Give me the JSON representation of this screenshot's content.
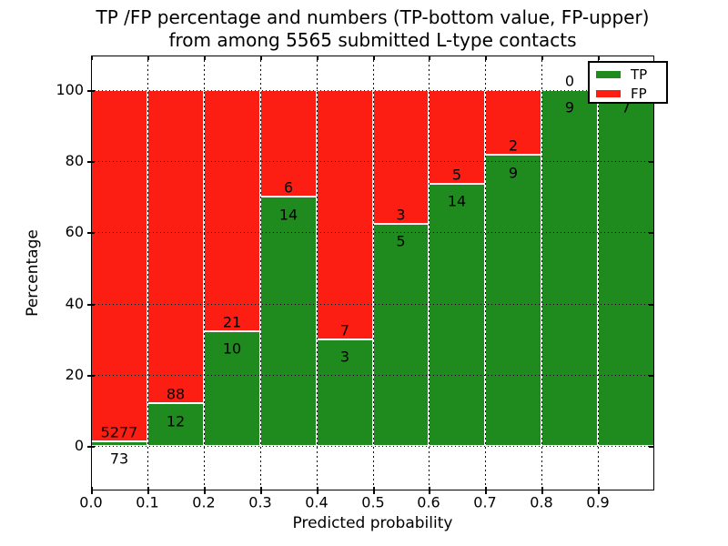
{
  "figure": {
    "title_line1": "TP /FP percentage and numbers (TP-bottom value, FP-upper)",
    "title_line2": "from among 5565 submitted L-type contacts"
  },
  "chart_data": {
    "type": "bar",
    "stacked": true,
    "normalized": "each bar scaled to 100%, split by TP share; counts printed as labels (TP below boundary, FP above)",
    "title": "TP /FP percentage and numbers (TP-bottom value, FP-upper) from among 5565 submitted L-type contacts",
    "xlabel": "Predicted probability",
    "ylabel": "Percentage",
    "total_contacts": 5565,
    "bin_start": [
      0.0,
      0.1,
      0.2,
      0.3,
      0.4,
      0.5,
      0.6,
      0.7,
      0.8,
      0.9
    ],
    "bin_width": 0.1,
    "series": [
      {
        "name": "TP",
        "color": "#1f8b1f",
        "counts": [
          73,
          12,
          10,
          14,
          3,
          5,
          14,
          9,
          9,
          7
        ]
      },
      {
        "name": "FP",
        "color": "#fc1d13",
        "counts": [
          5277,
          88,
          21,
          6,
          7,
          3,
          5,
          2,
          0,
          0
        ]
      }
    ],
    "tp_percent": [
      1.4,
      12.0,
      32.3,
      70.0,
      30.0,
      62.5,
      73.7,
      81.8,
      100.0,
      100.0
    ],
    "xticks": [
      "0.0",
      "0.1",
      "0.2",
      "0.3",
      "0.4",
      "0.5",
      "0.6",
      "0.7",
      "0.8",
      "0.9"
    ],
    "yticks": [
      "0",
      "20",
      "40",
      "60",
      "80",
      "100"
    ],
    "xlim": [
      0.0,
      1.0
    ],
    "ylim": [
      -12.5,
      109.7
    ],
    "grid": "dotted black, both axes",
    "legend": {
      "position": "upper right",
      "entries": [
        {
          "label": "TP",
          "color": "#1f8b1f"
        },
        {
          "label": "FP",
          "color": "#fc1d13"
        }
      ]
    }
  }
}
